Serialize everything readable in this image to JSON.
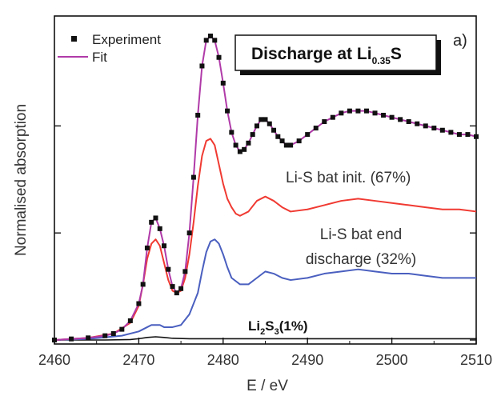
{
  "chart_data": {
    "type": "line",
    "panel_label": "a)",
    "title_box": {
      "main": "Discharge at Li",
      "sub": "0.35",
      "tail": "S"
    },
    "xlabel": "E / eV",
    "ylabel": "Normalised absorption",
    "xlim": [
      2460,
      2510
    ],
    "ylim": [
      0,
      1.42
    ],
    "x_ticks": [
      2460,
      2470,
      2480,
      2490,
      2500,
      2510
    ],
    "x_tick_labels": [
      "2460",
      "2470",
      "2480",
      "2490",
      "2500",
      "2510"
    ],
    "y_tick_labels_shown": false,
    "grid": false,
    "legend": {
      "position": "top-left",
      "items": [
        {
          "label": "Experiment",
          "marker": "square",
          "color": "#111111"
        },
        {
          "label": "Fit",
          "marker": "line",
          "color": "#b03aa8"
        }
      ]
    },
    "component_labels": {
      "init": "Li-S bat init. (67%)",
      "end_line1": "Li-S bat end",
      "end_line2": "discharge (32%)",
      "li2s3_a": "Li",
      "li2s3_b": "2",
      "li2s3_c": "S",
      "li2s3_d": "3",
      "li2s3_e": "(1%)"
    },
    "colors": {
      "experiment": "#111111",
      "fit": "#b03aa8",
      "init": "#f03a32",
      "end": "#4a5fbf",
      "li2s3": "#111111"
    },
    "series": [
      {
        "name": "Experiment",
        "x": [
          2460,
          2462,
          2464,
          2466,
          2467,
          2468,
          2469,
          2470,
          2470.5,
          2471,
          2471.5,
          2472,
          2472.5,
          2473,
          2473.5,
          2474,
          2474.5,
          2475,
          2475.5,
          2476,
          2476.5,
          2477,
          2477.5,
          2478,
          2478.5,
          2479,
          2479.5,
          2480,
          2480.5,
          2481,
          2481.5,
          2482,
          2482.5,
          2483,
          2483.5,
          2484,
          2484.5,
          2485,
          2485.5,
          2486,
          2486.5,
          2487,
          2487.5,
          2488,
          2489,
          2490,
          2491,
          2492,
          2493,
          2494,
          2495,
          2496,
          2497,
          2498,
          2499,
          2500,
          2501,
          2502,
          2503,
          2504,
          2505,
          2506,
          2507,
          2508,
          2509,
          2510
        ],
        "y": [
          0.0,
          0.005,
          0.01,
          0.02,
          0.03,
          0.05,
          0.09,
          0.17,
          0.26,
          0.43,
          0.55,
          0.57,
          0.52,
          0.44,
          0.33,
          0.25,
          0.22,
          0.24,
          0.32,
          0.5,
          0.76,
          1.05,
          1.28,
          1.4,
          1.42,
          1.4,
          1.32,
          1.2,
          1.07,
          0.97,
          0.91,
          0.88,
          0.89,
          0.92,
          0.96,
          1.0,
          1.03,
          1.03,
          1.01,
          0.98,
          0.95,
          0.93,
          0.91,
          0.91,
          0.93,
          0.96,
          0.99,
          1.02,
          1.04,
          1.06,
          1.07,
          1.07,
          1.07,
          1.06,
          1.05,
          1.04,
          1.03,
          1.02,
          1.01,
          1.0,
          0.99,
          0.98,
          0.97,
          0.96,
          0.96,
          0.95
        ]
      },
      {
        "name": "Fit",
        "x": [
          2460,
          2462,
          2464,
          2466,
          2467,
          2468,
          2469,
          2470,
          2470.5,
          2471,
          2471.5,
          2472,
          2472.5,
          2473,
          2473.5,
          2474,
          2474.5,
          2475,
          2475.5,
          2476,
          2476.5,
          2477,
          2477.5,
          2478,
          2478.5,
          2479,
          2479.5,
          2480,
          2480.5,
          2481,
          2481.5,
          2482,
          2482.5,
          2483,
          2483.5,
          2484,
          2484.5,
          2485,
          2485.5,
          2486,
          2486.5,
          2487,
          2487.5,
          2488,
          2489,
          2490,
          2491,
          2492,
          2493,
          2494,
          2495,
          2496,
          2497,
          2498,
          2499,
          2500,
          2501,
          2502,
          2503,
          2504,
          2505,
          2506,
          2507,
          2508,
          2509,
          2510
        ],
        "y": [
          0.0,
          0.005,
          0.01,
          0.02,
          0.03,
          0.05,
          0.09,
          0.17,
          0.26,
          0.43,
          0.55,
          0.57,
          0.52,
          0.44,
          0.33,
          0.25,
          0.22,
          0.24,
          0.32,
          0.5,
          0.76,
          1.05,
          1.28,
          1.4,
          1.42,
          1.4,
          1.32,
          1.2,
          1.07,
          0.97,
          0.91,
          0.88,
          0.89,
          0.92,
          0.96,
          1.0,
          1.03,
          1.03,
          1.01,
          0.98,
          0.95,
          0.93,
          0.91,
          0.91,
          0.93,
          0.96,
          0.99,
          1.02,
          1.04,
          1.06,
          1.07,
          1.07,
          1.07,
          1.06,
          1.05,
          1.04,
          1.03,
          1.02,
          1.01,
          1.0,
          0.99,
          0.98,
          0.97,
          0.96,
          0.96,
          0.95
        ]
      },
      {
        "name": "Li-S bat init. (67%)",
        "x": [
          2460,
          2464,
          2467,
          2469,
          2470,
          2470.5,
          2471,
          2471.5,
          2472,
          2472.5,
          2473,
          2473.5,
          2474,
          2474.5,
          2475,
          2475.5,
          2476,
          2476.5,
          2477,
          2477.5,
          2478,
          2478.5,
          2479,
          2479.5,
          2480,
          2480.5,
          2481,
          2481.5,
          2482,
          2483,
          2484,
          2485,
          2486,
          2487,
          2488,
          2490,
          2492,
          2494,
          2496,
          2498,
          2500,
          2502,
          2504,
          2506,
          2508,
          2510
        ],
        "y": [
          0.0,
          0.01,
          0.03,
          0.08,
          0.16,
          0.26,
          0.38,
          0.45,
          0.47,
          0.44,
          0.36,
          0.28,
          0.23,
          0.22,
          0.23,
          0.29,
          0.4,
          0.55,
          0.72,
          0.86,
          0.93,
          0.94,
          0.91,
          0.82,
          0.73,
          0.66,
          0.62,
          0.59,
          0.58,
          0.6,
          0.65,
          0.67,
          0.65,
          0.62,
          0.6,
          0.61,
          0.63,
          0.65,
          0.66,
          0.65,
          0.64,
          0.63,
          0.62,
          0.61,
          0.61,
          0.6
        ]
      },
      {
        "name": "Li-S bat end discharge (32%)",
        "x": [
          2460,
          2464,
          2468,
          2470,
          2471,
          2471.5,
          2472,
          2472.5,
          2473,
          2474,
          2475,
          2476,
          2477,
          2477.5,
          2478,
          2478.5,
          2479,
          2479.5,
          2480,
          2480.5,
          2481,
          2482,
          2483,
          2484,
          2485,
          2486,
          2487,
          2488,
          2490,
          2492,
          2494,
          2496,
          2498,
          2500,
          2502,
          2504,
          2506,
          2508,
          2510
        ],
        "y": [
          0.0,
          0.005,
          0.02,
          0.04,
          0.06,
          0.07,
          0.07,
          0.07,
          0.06,
          0.06,
          0.07,
          0.12,
          0.22,
          0.32,
          0.41,
          0.46,
          0.47,
          0.45,
          0.4,
          0.34,
          0.29,
          0.26,
          0.26,
          0.29,
          0.32,
          0.31,
          0.29,
          0.28,
          0.29,
          0.31,
          0.32,
          0.33,
          0.32,
          0.31,
          0.31,
          0.3,
          0.29,
          0.29,
          0.29
        ]
      },
      {
        "name": "Li2S3 (1%)",
        "x": [
          2460,
          2466,
          2469,
          2470,
          2471,
          2472,
          2473,
          2474,
          2476,
          2480,
          2490,
          2500,
          2510
        ],
        "y": [
          0.0,
          0.0,
          0.002,
          0.006,
          0.012,
          0.015,
          0.012,
          0.008,
          0.006,
          0.006,
          0.006,
          0.006,
          0.006
        ]
      }
    ]
  }
}
